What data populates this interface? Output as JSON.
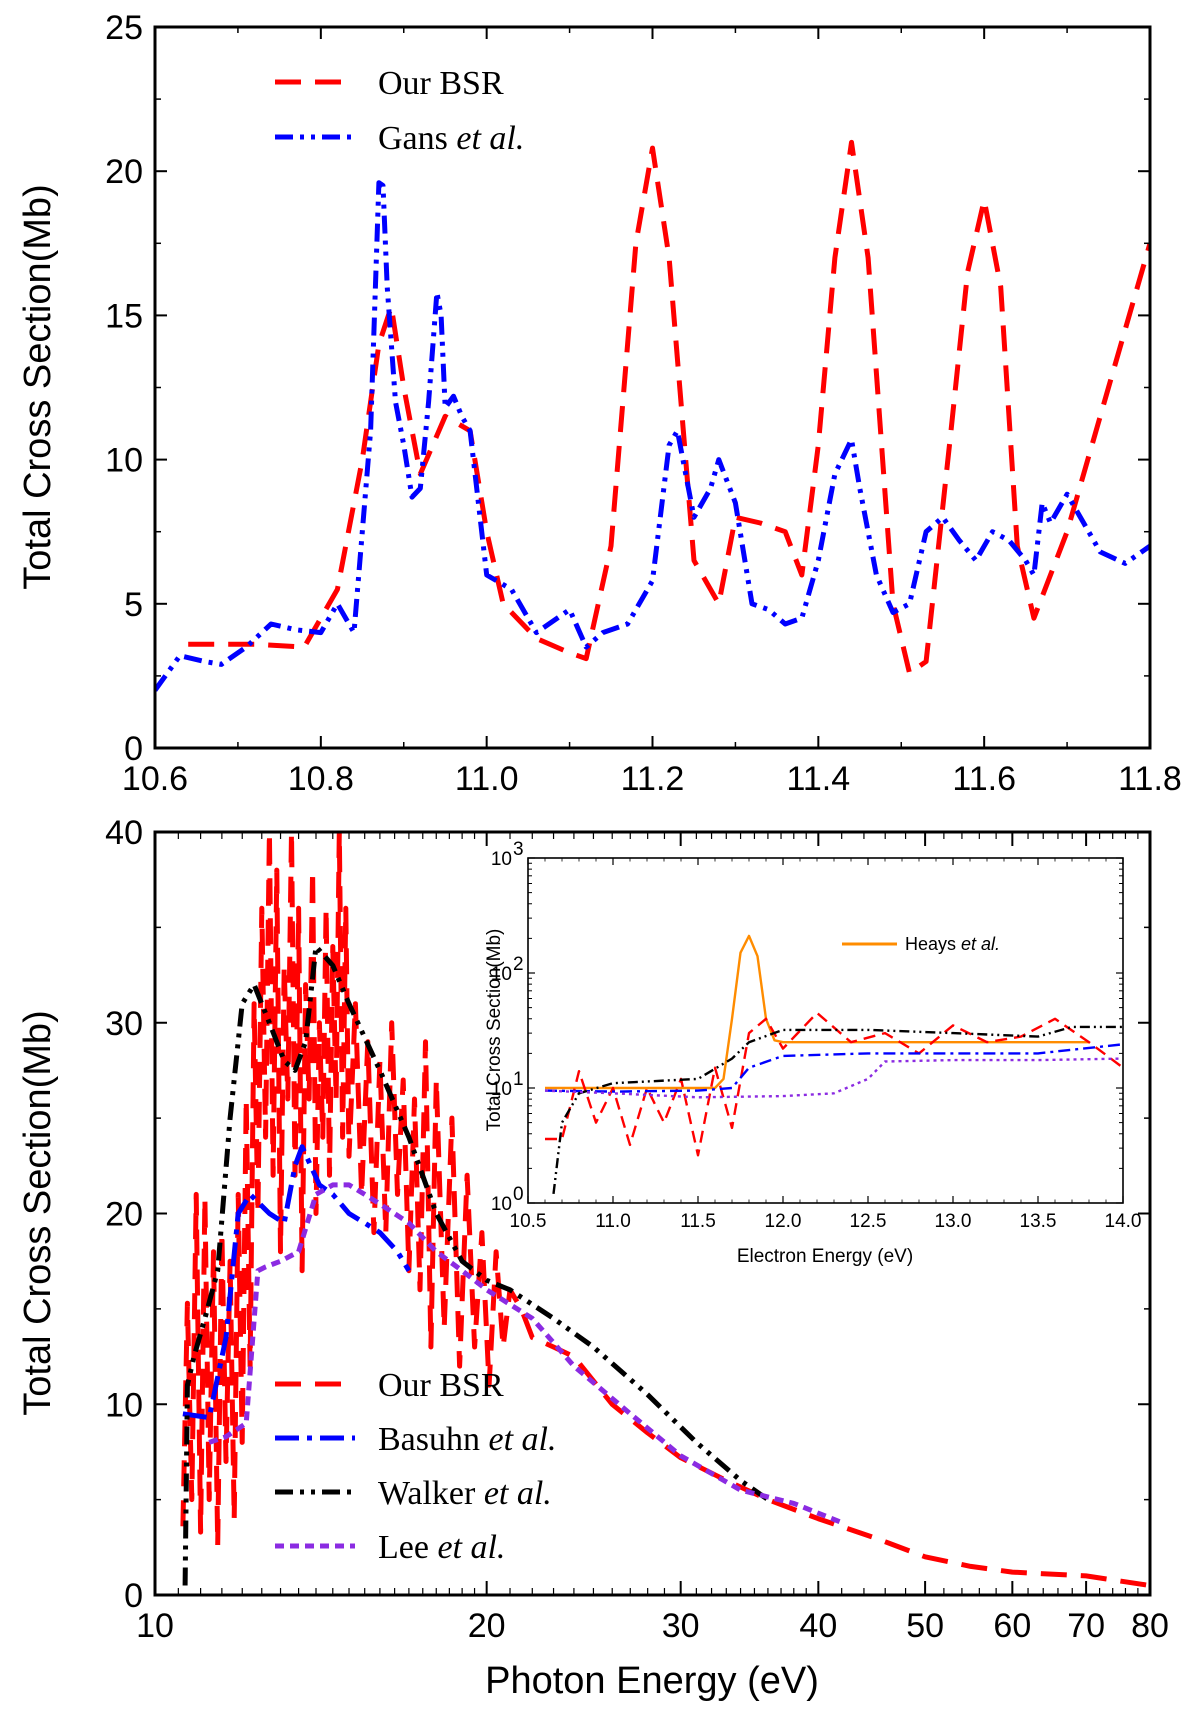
{
  "chart_data": [
    {
      "id": "top",
      "type": "line",
      "xlabel": "",
      "ylabel": "Total Cross Section(Mb)",
      "xlim": [
        10.6,
        11.8
      ],
      "ylim": [
        0,
        25
      ],
      "xticks": [
        "10.6",
        "10.8",
        "11.0",
        "11.2",
        "11.4",
        "11.6",
        "11.8"
      ],
      "yticks": [
        "0",
        "5",
        "10",
        "15",
        "20",
        "25"
      ],
      "legend_position": "top-left",
      "series": [
        {
          "name": "Our BSR",
          "name_main": "Our BSR",
          "name_italic": "",
          "color": "#ff0000",
          "style": "dash",
          "x": [
            10.64,
            10.72,
            10.78,
            10.82,
            10.85,
            10.87,
            10.885,
            10.9,
            10.92,
            10.95,
            10.98,
            11.0,
            11.02,
            11.06,
            11.1,
            11.12,
            11.15,
            11.18,
            11.2,
            11.22,
            11.25,
            11.28,
            11.3,
            11.33,
            11.36,
            11.38,
            11.4,
            11.42,
            11.44,
            11.46,
            11.49,
            11.51,
            11.53,
            11.56,
            11.58,
            11.6,
            11.62,
            11.64,
            11.66,
            11.7,
            11.75,
            11.8
          ],
          "y": [
            3.6,
            3.6,
            3.5,
            5.5,
            10.0,
            14.0,
            15.3,
            12.5,
            9.5,
            11.5,
            11.0,
            7.5,
            5.0,
            3.8,
            3.3,
            3.1,
            7.0,
            17.5,
            20.8,
            17.0,
            6.5,
            5.0,
            8.0,
            7.8,
            7.5,
            6.0,
            10.5,
            17.0,
            21.0,
            17.0,
            5.0,
            2.6,
            3.0,
            11.0,
            16.5,
            19.0,
            16.0,
            7.0,
            4.5,
            7.5,
            12.5,
            17.5
          ]
        },
        {
          "name": "Gans et al.",
          "name_main": "Gans ",
          "name_italic": "et al.",
          "color": "#0000ff",
          "style": "dash-dot-dot",
          "x": [
            10.6,
            10.63,
            10.66,
            10.68,
            10.71,
            10.74,
            10.77,
            10.8,
            10.82,
            10.84,
            10.86,
            10.87,
            10.875,
            10.88,
            10.89,
            10.9,
            10.91,
            10.92,
            10.93,
            10.94,
            10.945,
            10.95,
            10.96,
            10.97,
            10.98,
            11.0,
            11.03,
            11.06,
            11.1,
            11.12,
            11.14,
            11.17,
            11.2,
            11.22,
            11.23,
            11.25,
            11.27,
            11.28,
            11.3,
            11.32,
            11.34,
            11.36,
            11.38,
            11.4,
            11.42,
            11.44,
            11.45,
            11.47,
            11.49,
            11.51,
            11.53,
            11.55,
            11.57,
            11.59,
            11.61,
            11.63,
            11.65,
            11.66,
            11.67,
            11.68,
            11.7,
            11.72,
            11.74,
            11.77,
            11.8
          ],
          "y": [
            2.0,
            3.2,
            3.0,
            2.9,
            3.5,
            4.3,
            4.1,
            4.0,
            5.0,
            4.0,
            11.0,
            19.6,
            19.5,
            16.0,
            12.0,
            10.5,
            8.7,
            9.0,
            12.0,
            15.8,
            15.0,
            11.8,
            12.2,
            11.5,
            11.0,
            6.0,
            5.5,
            4.0,
            4.8,
            3.5,
            4.0,
            4.3,
            5.8,
            10.5,
            11.0,
            8.0,
            9.0,
            10.0,
            8.5,
            5.0,
            4.8,
            4.3,
            4.5,
            6.5,
            9.5,
            10.7,
            9.0,
            6.0,
            4.7,
            5.0,
            7.5,
            8.0,
            7.2,
            6.5,
            7.5,
            7.2,
            6.5,
            6.0,
            8.5,
            7.8,
            8.8,
            7.8,
            6.8,
            6.4,
            7.0
          ]
        }
      ]
    },
    {
      "id": "bottom",
      "type": "line",
      "xlabel": "Photon Energy (eV)",
      "ylabel": "Total Cross Section(Mb)",
      "xscale": "log",
      "xlim": [
        10,
        80
      ],
      "ylim": [
        0,
        40
      ],
      "xticks": [
        "10",
        "20",
        "30",
        "40",
        "50",
        "60",
        "70",
        "80"
      ],
      "yticks": [
        "0",
        "10",
        "20",
        "30",
        "40"
      ],
      "legend_position": "lower-left",
      "series": [
        {
          "name": "Our BSR",
          "name_main": "Our BSR",
          "name_italic": "",
          "color": "#ff0000",
          "style": "dash",
          "x": [
            10.6,
            10.7,
            10.8,
            10.9,
            11.0,
            11.1,
            11.2,
            11.3,
            11.4,
            11.5,
            11.6,
            11.7,
            11.8,
            11.9,
            12.0,
            12.1,
            12.2,
            12.3,
            12.4,
            12.5,
            12.6,
            12.7,
            12.8,
            12.9,
            13.0,
            13.1,
            13.2,
            13.3,
            13.4,
            13.5,
            13.6,
            13.7,
            13.8,
            13.9,
            14.0,
            14.1,
            14.2,
            14.3,
            14.4,
            14.5,
            14.6,
            14.7,
            14.8,
            14.9,
            15.0,
            15.2,
            15.4,
            15.6,
            15.8,
            16.0,
            16.2,
            16.4,
            16.6,
            16.8,
            17.0,
            17.2,
            17.4,
            17.6,
            17.8,
            18.0,
            18.3,
            18.6,
            18.9,
            19.2,
            19.5,
            19.8,
            20.1,
            20.4,
            20.7,
            21.0,
            21.5,
            22.0,
            23.0,
            24.0,
            26.0,
            28.0,
            30.0,
            33.0,
            36.0,
            40.0,
            45.0,
            50.0,
            55.0,
            60.0,
            70.0,
            80.0
          ],
          "y": [
            3.6,
            15.3,
            5.0,
            21.0,
            3.3,
            20.8,
            5.0,
            18.0,
            2.6,
            19.0,
            7.0,
            17.5,
            4.0,
            21.0,
            8.0,
            26.0,
            12.0,
            31.0,
            20.0,
            36.0,
            24.0,
            40.0,
            22.0,
            38.0,
            18.0,
            33.0,
            26.0,
            40.0,
            22.0,
            36.0,
            17.0,
            32.0,
            26.0,
            38.0,
            20.0,
            30.0,
            24.0,
            36.0,
            22.0,
            34.0,
            26.0,
            40.0,
            24.0,
            36.0,
            23.0,
            31.0,
            21.0,
            29.0,
            19.0,
            28.0,
            19.0,
            30.0,
            21.0,
            27.0,
            17.0,
            26.0,
            16.0,
            29.0,
            13.0,
            27.0,
            14.0,
            25.0,
            12.0,
            22.0,
            13.0,
            19.0,
            11.0,
            18.0,
            13.0,
            16.0,
            15.0,
            13.5,
            13.0,
            12.5,
            10.0,
            8.5,
            7.2,
            6.0,
            5.0,
            4.0,
            3.0,
            2.0,
            1.5,
            1.2,
            1.0,
            0.5
          ]
        },
        {
          "name": "Basuhn et al.",
          "name_main": "Basuhn ",
          "name_italic": "et al.",
          "color": "#0000ff",
          "style": "dash-dot",
          "x": [
            10.6,
            11.2,
            11.6,
            11.9,
            12.2,
            12.7,
            13.1,
            13.4,
            13.6,
            14.1,
            14.5,
            15.0,
            15.5,
            16.0,
            16.6,
            17.0
          ],
          "y": [
            9.5,
            9.3,
            13.5,
            20.0,
            21.0,
            20.0,
            19.5,
            22.5,
            23.5,
            21.5,
            21.0,
            20.0,
            19.5,
            19.0,
            18.0,
            17.0
          ]
        },
        {
          "name": "Walker et al.",
          "name_main": "Walker ",
          "name_italic": "et al.",
          "color": "#000000",
          "style": "dash-dot-dot",
          "x": [
            10.65,
            10.7,
            10.85,
            11.1,
            11.4,
            11.7,
            12.0,
            12.3,
            12.7,
            13.1,
            13.4,
            13.7,
            14.0,
            14.5,
            15.0,
            16.0,
            17.0,
            18.0,
            19.0,
            20.0,
            21.0,
            23.0,
            25.0,
            28.0,
            31.0,
            34.0,
            36.0
          ],
          "y": [
            0.5,
            11.0,
            12.5,
            14.5,
            17.0,
            25.0,
            31.0,
            32.0,
            30.0,
            28.0,
            27.5,
            29.0,
            34.0,
            33.0,
            31.0,
            27.5,
            24.0,
            20.0,
            17.5,
            16.5,
            16.0,
            14.5,
            13.0,
            10.5,
            8.0,
            6.0,
            5.0
          ]
        },
        {
          "name": "Lee et al.",
          "name_main": "Lee ",
          "name_italic": "et al.",
          "color": "#8b2be2",
          "style": "dot",
          "x": [
            11.2,
            11.6,
            12.1,
            12.4,
            12.6,
            13.0,
            13.5,
            14.0,
            14.5,
            15.0,
            15.5,
            16.0,
            17.0,
            18.0,
            19.0,
            20.0,
            22.0,
            24.0,
            27.0,
            30.0,
            34.0,
            38.0,
            42.0
          ],
          "y": [
            8.0,
            8.3,
            9.0,
            17.0,
            17.2,
            17.5,
            18.0,
            21.0,
            21.5,
            21.5,
            21.0,
            20.5,
            19.5,
            18.0,
            17.0,
            16.0,
            14.5,
            12.0,
            9.5,
            7.3,
            5.5,
            4.8,
            3.8
          ]
        }
      ],
      "inset": {
        "type": "line",
        "xlabel": "Electron Energy (eV)",
        "ylabel": "Total Cross Section(Mb)",
        "yscale": "log",
        "xlim": [
          10.5,
          14.0
        ],
        "ylim": [
          1,
          1000
        ],
        "xticks": [
          "10.5",
          "11.0",
          "11.5",
          "12.0",
          "12.5",
          "13.0",
          "13.5",
          "14.0"
        ],
        "yticks": [
          "10",
          "10",
          "10",
          "10"
        ],
        "ytick_exponents": [
          "0",
          "1",
          "2",
          "3"
        ],
        "legend": {
          "name_main": "Heays ",
          "name_italic": "et al.",
          "color": "#ff8c00"
        },
        "series": [
          {
            "name": "Heays et al.",
            "color": "#ff8c00",
            "style": "solid",
            "x": [
              10.6,
              11.6,
              11.65,
              11.7,
              11.75,
              11.8,
              11.85,
              11.9,
              11.95,
              12.0,
              13.0,
              13.8
            ],
            "y": [
              10,
              10,
              12,
              40,
              150,
              210,
              140,
              40,
              26,
              25,
              25,
              25
            ]
          },
          {
            "name": "",
            "color": "#ff0000",
            "style": "dash",
            "x": [
              10.6,
              10.7,
              10.8,
              10.9,
              11.0,
              11.1,
              11.2,
              11.3,
              11.4,
              11.5,
              11.6,
              11.7,
              11.8,
              11.9,
              12.0,
              12.2,
              12.4,
              12.6,
              12.8,
              13.0,
              13.2,
              13.4,
              13.6,
              13.8,
              14.0
            ],
            "y": [
              3.6,
              3.6,
              14,
              5,
              10,
              3.2,
              10,
              5,
              12,
              2.6,
              15,
              4.5,
              30,
              40,
              22,
              45,
              25,
              30,
              20,
              35,
              25,
              28,
              40,
              25,
              15
            ]
          },
          {
            "name": "",
            "color": "#0000ff",
            "style": "dash-dot",
            "x": [
              10.6,
              11.0,
              11.5,
              11.7,
              11.8,
              12.0,
              12.5,
              13.0,
              13.5,
              14.0
            ],
            "y": [
              9.5,
              9.3,
              9.5,
              10,
              15,
              19,
              20,
              20,
              20,
              24
            ]
          },
          {
            "name": "",
            "color": "#000000",
            "style": "dash-dot-dot",
            "x": [
              10.65,
              10.7,
              10.8,
              11.0,
              11.5,
              11.7,
              11.8,
              12.0,
              12.5,
              13.0,
              13.5,
              13.7,
              14.0
            ],
            "y": [
              1.2,
              5,
              9,
              11,
              12,
              18,
              25,
              32,
              32,
              30,
              28,
              34,
              34
            ]
          },
          {
            "name": "",
            "color": "#8b2be2",
            "style": "dot",
            "x": [
              10.6,
              11.0,
              11.5,
              12.0,
              12.3,
              12.5,
              12.6,
              13.0,
              13.5,
              14.0
            ],
            "y": [
              9.5,
              9.0,
              8.3,
              8.5,
              9.0,
              12,
              17,
              17.5,
              17.5,
              18
            ]
          }
        ]
      }
    }
  ]
}
